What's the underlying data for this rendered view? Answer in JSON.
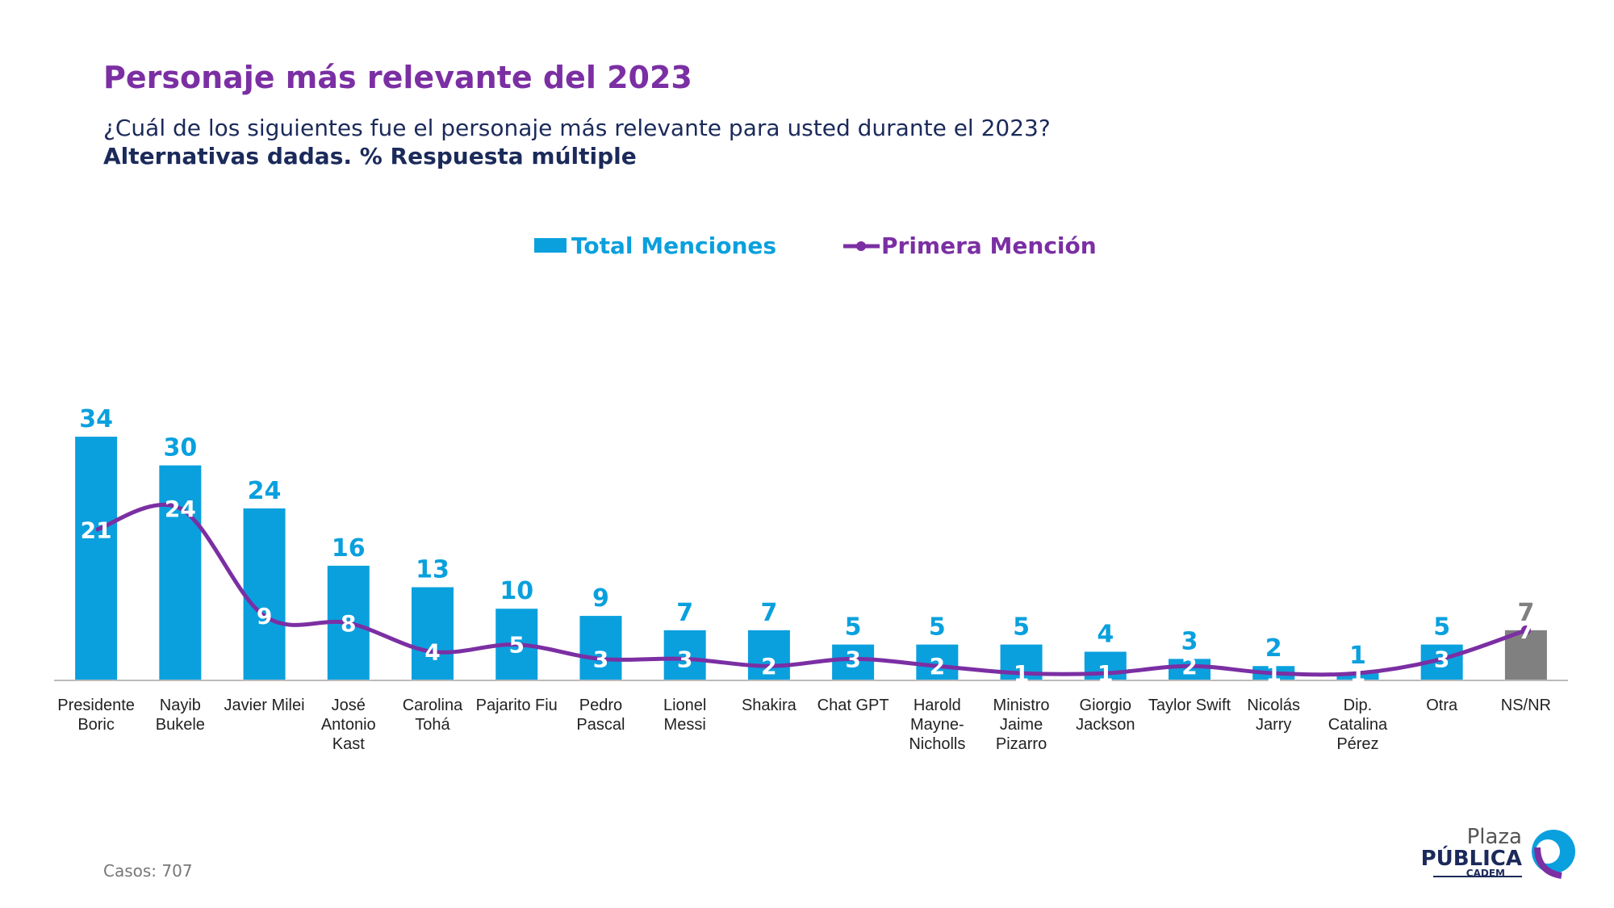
{
  "chart_data": {
    "type": "bar",
    "title": "Personaje más relevante del 2023",
    "subtitle": "¿Cuál de los siguientes fue el personaje más relevante para usted durante el 2023?",
    "note": "Alternativas dadas. % Respuesta múltiple",
    "footnote": "Casos: 707",
    "logo": [
      "Plaza",
      "PÚBLICA",
      "CADEM"
    ],
    "categories": [
      "Presidente Boric",
      "Nayib Bukele",
      "Javier Milei",
      "José Antonio Kast",
      "Carolina Tohá",
      "Pajarito Fiu",
      "Pedro Pascal",
      "Lionel Messi",
      "Shakira",
      "Chat GPT",
      "Harold Mayne-Nicholls",
      "Ministro Jaime Pizarro",
      "Giorgio Jackson",
      "Taylor Swift",
      "Nicolás Jarry",
      "Dip. Catalina Pérez",
      "Otra",
      "NS/NR"
    ],
    "series": [
      {
        "name": "Total Menciones",
        "type": "bar",
        "color": "#0aa0de",
        "colors": [
          "#0aa0de",
          "#0aa0de",
          "#0aa0de",
          "#0aa0de",
          "#0aa0de",
          "#0aa0de",
          "#0aa0de",
          "#0aa0de",
          "#0aa0de",
          "#0aa0de",
          "#0aa0de",
          "#0aa0de",
          "#0aa0de",
          "#0aa0de",
          "#0aa0de",
          "#0aa0de",
          "#0aa0de",
          "#808080"
        ],
        "values": [
          34,
          30,
          24,
          16,
          13,
          10,
          9,
          7,
          7,
          5,
          5,
          5,
          4,
          3,
          2,
          1,
          5,
          7
        ]
      },
      {
        "name": "Primera Mención",
        "type": "line",
        "color": "#7b2fa3",
        "values": [
          21,
          24,
          9,
          8,
          4,
          5,
          3,
          3,
          2,
          3,
          2,
          1,
          1,
          2,
          1,
          1,
          3,
          7
        ]
      }
    ]
  }
}
